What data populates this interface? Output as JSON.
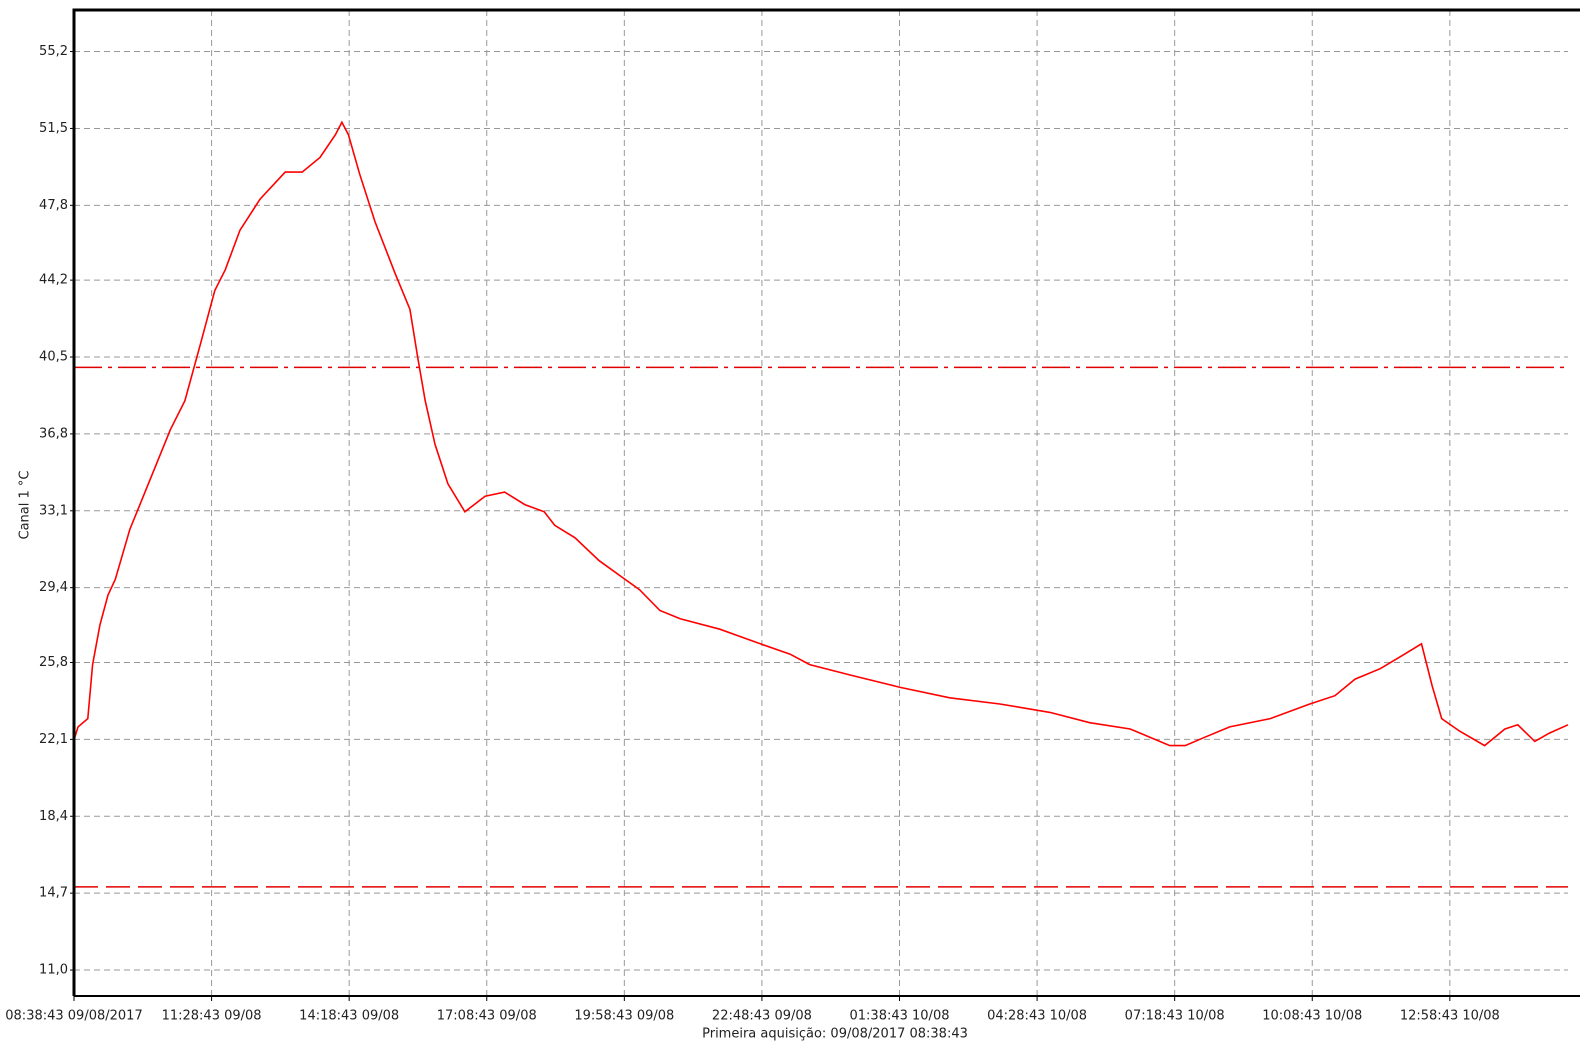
{
  "chart_data": {
    "type": "line",
    "subtitle": "Primeira aquisição: 09/08/2017 08:38:43",
    "ylabel": "Canal 1 °C",
    "xlim": [
      0,
      1846
    ],
    "ylim": [
      9.75,
      57.2
    ],
    "xticks": [
      {
        "value": 0,
        "label": "08:38:43 09/08/2017"
      },
      {
        "value": 170,
        "label": "11:28:43 09/08"
      },
      {
        "value": 340,
        "label": "14:18:43 09/08"
      },
      {
        "value": 510,
        "label": "17:08:43 09/08"
      },
      {
        "value": 680,
        "label": "19:58:43 09/08"
      },
      {
        "value": 850,
        "label": "22:48:43 09/08"
      },
      {
        "value": 1020,
        "label": "01:38:43 10/08"
      },
      {
        "value": 1190,
        "label": "04:28:43 10/08"
      },
      {
        "value": 1360,
        "label": "07:18:43 10/08"
      },
      {
        "value": 1530,
        "label": "10:08:43 10/08"
      },
      {
        "value": 1700,
        "label": "12:58:43 10/08"
      }
    ],
    "yticks": [
      {
        "value": 11.0,
        "label": "11,0"
      },
      {
        "value": 14.7,
        "label": "14,7"
      },
      {
        "value": 18.4,
        "label": "18,4"
      },
      {
        "value": 22.1,
        "label": "22,1"
      },
      {
        "value": 25.8,
        "label": "25,8"
      },
      {
        "value": 29.4,
        "label": "29,4"
      },
      {
        "value": 33.1,
        "label": "33,1"
      },
      {
        "value": 36.8,
        "label": "36,8"
      },
      {
        "value": 40.5,
        "label": "40,5"
      },
      {
        "value": 44.2,
        "label": "44,2"
      },
      {
        "value": 47.8,
        "label": "47,8"
      },
      {
        "value": 51.5,
        "label": "51,5"
      },
      {
        "value": 55.2,
        "label": "55,2"
      }
    ],
    "grid": true,
    "thresholds": [
      {
        "value": 40.0,
        "style": "dash-dot",
        "color": "#e00000"
      },
      {
        "value": 15.0,
        "style": "dashed",
        "color": "#e00000"
      }
    ],
    "series": [
      {
        "color": "#ff0000",
        "x": [
          0,
          4.9,
          17,
          23,
          32,
          42,
          51,
          69,
          94,
          119,
          137,
          156,
          174,
          187,
          205,
          230,
          261,
          282,
          304,
          323,
          331,
          339,
          353,
          372,
          397,
          415,
          425,
          434,
          446,
          462,
          483,
          508,
          532,
          557,
          581,
          594,
          619,
          649,
          681,
          699,
          724,
          749,
          798,
          848,
          885,
          909,
          959,
          1021,
          1082,
          1144,
          1206,
          1255,
          1305,
          1354,
          1373,
          1397,
          1428,
          1478,
          1527,
          1558,
          1583,
          1614,
          1644,
          1665,
          1678,
          1690,
          1712,
          1743,
          1768,
          1784,
          1805,
          1823,
          1846
        ],
        "values": [
          22.07,
          22.7,
          23.1,
          25.7,
          27.6,
          29.05,
          29.8,
          32.2,
          34.6,
          37.0,
          38.4,
          41.1,
          43.7,
          44.7,
          46.6,
          48.1,
          49.4,
          49.4,
          50.1,
          51.2,
          51.8,
          51.2,
          49.3,
          47.0,
          44.5,
          42.8,
          40.4,
          38.4,
          36.3,
          34.4,
          33.05,
          33.8,
          34.0,
          33.4,
          33.05,
          32.4,
          31.8,
          30.7,
          29.8,
          29.3,
          28.3,
          27.9,
          27.4,
          26.7,
          26.2,
          25.7,
          25.2,
          24.6,
          24.1,
          23.8,
          23.4,
          22.9,
          22.6,
          21.8,
          21.8,
          22.2,
          22.7,
          23.1,
          23.8,
          24.2,
          25.0,
          25.5,
          26.2,
          26.7,
          24.7,
          23.1,
          22.5,
          21.8,
          22.6,
          22.8,
          22.0,
          22.4,
          22.8
        ]
      }
    ]
  }
}
